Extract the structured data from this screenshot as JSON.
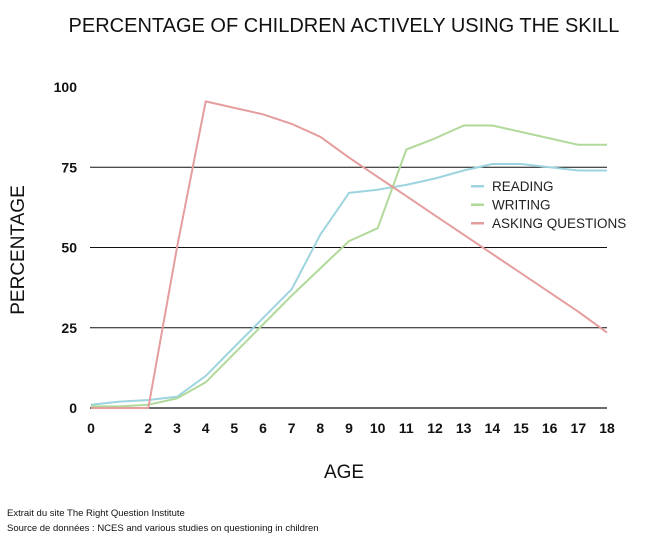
{
  "chart_data": {
    "type": "line",
    "title": "PERCENTAGE OF CHILDREN ACTIVELY USING THE SKILL",
    "xlabel": "AGE",
    "ylabel": "PERCENTAGE",
    "x": [
      0,
      1,
      2,
      3,
      4,
      5,
      6,
      7,
      8,
      9,
      10,
      11,
      12,
      13,
      14,
      15,
      16,
      17,
      18
    ],
    "xlim": [
      0,
      18
    ],
    "ylim": [
      0,
      100
    ],
    "x_ticks": [
      "0",
      "2",
      "3",
      "4",
      "5",
      "6",
      "7",
      "8",
      "9",
      "10",
      "11",
      "12",
      "13",
      "14",
      "15",
      "16",
      "17",
      "18"
    ],
    "y_ticks": [
      0,
      25,
      50,
      75,
      100
    ],
    "gridlines": [
      25,
      50,
      75
    ],
    "legend_position": "right",
    "series": [
      {
        "name": "READING",
        "color": "#9dd4df",
        "points": [
          [
            0,
            1
          ],
          [
            1,
            2
          ],
          [
            2,
            2.5
          ],
          [
            3,
            3.5
          ],
          [
            4,
            10
          ],
          [
            5,
            19
          ],
          [
            6,
            28
          ],
          [
            7,
            37
          ],
          [
            8,
            54
          ],
          [
            9,
            67
          ],
          [
            10,
            68
          ],
          [
            11,
            69.5
          ],
          [
            12,
            71.5
          ],
          [
            13,
            74
          ],
          [
            14,
            76
          ],
          [
            15,
            76
          ],
          [
            16,
            75
          ],
          [
            17,
            74
          ],
          [
            18,
            74
          ]
        ]
      },
      {
        "name": "WRITING",
        "color": "#b0d99a",
        "points": [
          [
            0,
            0.5
          ],
          [
            1,
            0.5
          ],
          [
            2,
            1
          ],
          [
            3,
            3
          ],
          [
            4,
            8
          ],
          [
            5,
            17
          ],
          [
            6,
            26
          ],
          [
            7,
            35
          ],
          [
            8,
            43.5
          ],
          [
            9,
            52
          ],
          [
            10,
            56
          ],
          [
            11,
            80.5
          ],
          [
            12,
            84
          ],
          [
            13,
            88
          ],
          [
            14,
            88
          ],
          [
            15,
            86
          ],
          [
            16,
            84
          ],
          [
            17,
            82
          ],
          [
            18,
            82
          ]
        ]
      },
      {
        "name": "ASKING QUESTIONS",
        "color": "#e59d9d",
        "points": [
          [
            0,
            0
          ],
          [
            1,
            0
          ],
          [
            2,
            0
          ],
          [
            3,
            50
          ],
          [
            4,
            95.5
          ],
          [
            5,
            93.5
          ],
          [
            6,
            91.5
          ],
          [
            7,
            88.5
          ],
          [
            8,
            84.5
          ],
          [
            9,
            78
          ],
          [
            10,
            72
          ],
          [
            11,
            66
          ],
          [
            12,
            60
          ],
          [
            13,
            54
          ],
          [
            14,
            48
          ],
          [
            15,
            42
          ],
          [
            16,
            36
          ],
          [
            17,
            30
          ],
          [
            18,
            23.5
          ]
        ]
      }
    ]
  },
  "credits": {
    "line1": "Extrait du site The Right Question Institute",
    "line2": "Source de données : NCES and various studies on questioning in children"
  }
}
